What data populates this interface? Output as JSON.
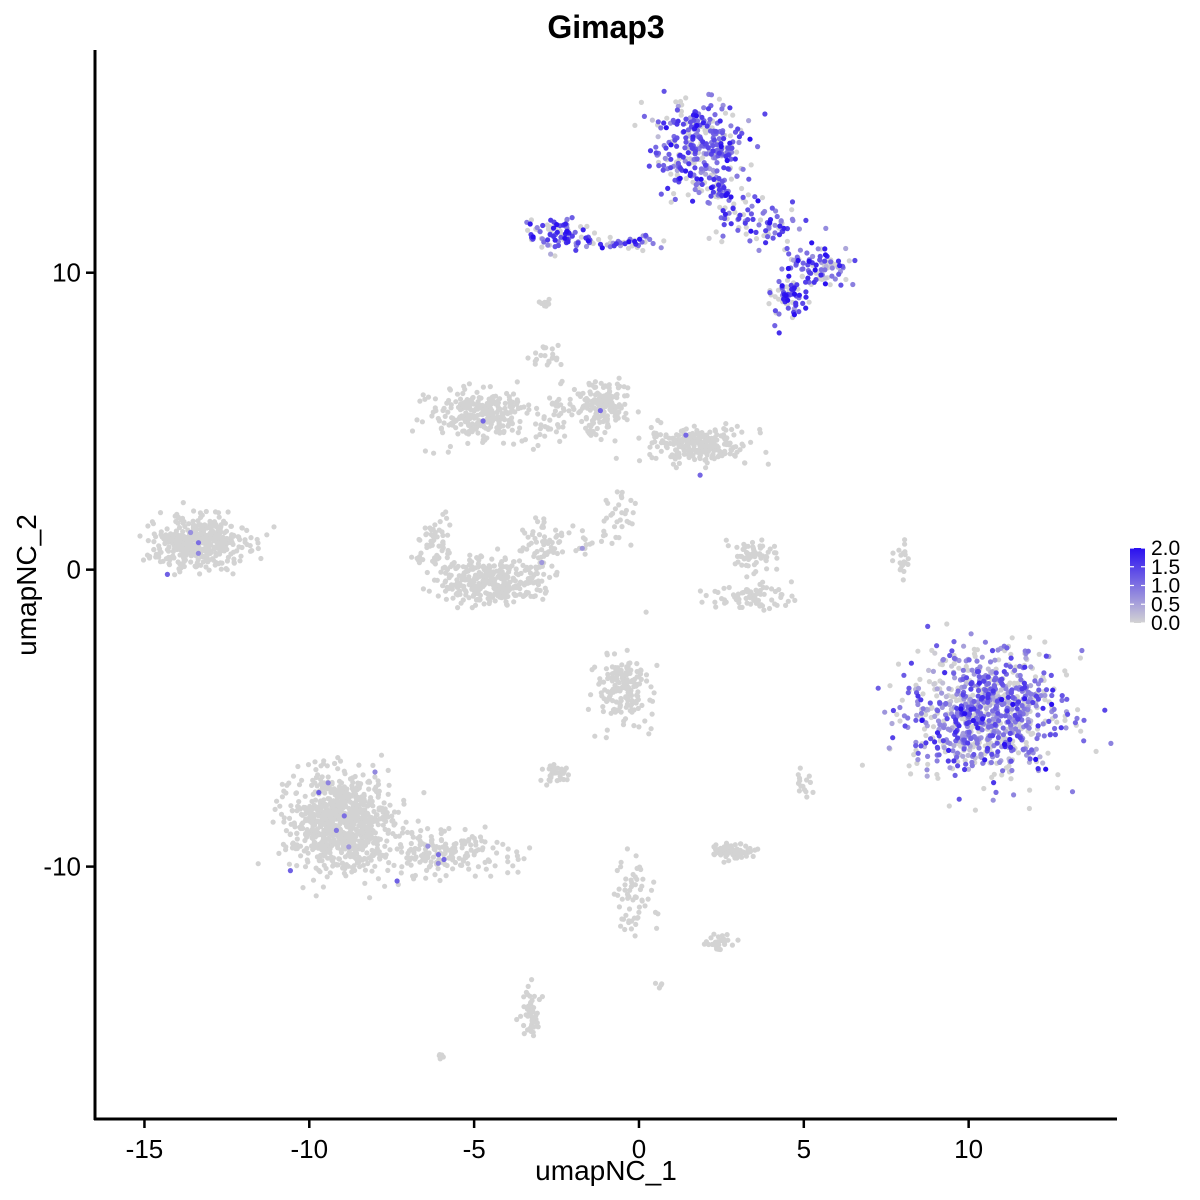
{
  "chart_data": {
    "type": "scatter",
    "title": "Gimap3",
    "xlabel": "umapNC_1",
    "ylabel": "umapNC_2",
    "xlim": [
      -16.5,
      14.5
    ],
    "ylim": [
      -18.5,
      17.5
    ],
    "x_ticks": [
      -15,
      -10,
      -5,
      0,
      5,
      10
    ],
    "x_tick_labels": [
      "-15",
      "-10",
      "-5",
      "0",
      "5",
      "10"
    ],
    "y_ticks": [
      10,
      0,
      -10
    ],
    "y_tick_labels": [
      "10",
      "0",
      "-10"
    ],
    "grid": false,
    "color_scale": {
      "low_color": "#d3d3d3",
      "high_color": "#2a10f0",
      "range": [
        0.0,
        2.0
      ],
      "ticks": [
        "2.0",
        "1.5",
        "1.0",
        "0.5",
        "0.0"
      ],
      "legend_position": "right"
    },
    "clusters": [
      {
        "center": [
          1.8,
          14.2
        ],
        "spread": [
          0.9,
          1.0
        ],
        "n": 320,
        "expr": 1.2
      },
      {
        "center": [
          2.6,
          12.6
        ],
        "spread": [
          0.6,
          0.5
        ],
        "n": 60,
        "expr": 1.2
      },
      {
        "center": [
          3.8,
          11.6
        ],
        "spread": [
          0.9,
          0.5
        ],
        "n": 70,
        "expr": 1.3
      },
      {
        "center": [
          -2.4,
          11.3
        ],
        "spread": [
          0.6,
          0.4
        ],
        "n": 80,
        "expr": 1.3
      },
      {
        "center": [
          -0.6,
          11.0
        ],
        "spread": [
          1.3,
          0.15
        ],
        "n": 50,
        "expr": 1.2
      },
      {
        "center": [
          5.4,
          10.2
        ],
        "spread": [
          0.7,
          0.5
        ],
        "n": 90,
        "expr": 1.1
      },
      {
        "center": [
          4.5,
          9.1
        ],
        "spread": [
          0.4,
          0.4
        ],
        "n": 60,
        "expr": 1.5
      },
      {
        "center": [
          10.6,
          -4.8
        ],
        "spread": [
          1.5,
          1.4
        ],
        "n": 900,
        "expr": 0.9
      },
      {
        "center": [
          -13.3,
          0.9
        ],
        "spread": [
          0.9,
          0.6
        ],
        "n": 420,
        "expr": 0.0
      },
      {
        "center": [
          -4.8,
          5.2
        ],
        "spread": [
          1.0,
          0.6
        ],
        "n": 280,
        "expr": 0.0
      },
      {
        "center": [
          -4.5,
          -0.4
        ],
        "spread": [
          1.0,
          0.5
        ],
        "n": 330,
        "expr": 0.0
      },
      {
        "center": [
          -6.2,
          0.8
        ],
        "spread": [
          0.4,
          0.6
        ],
        "n": 60,
        "expr": 0.0
      },
      {
        "center": [
          -3.0,
          0.8
        ],
        "spread": [
          0.4,
          0.6
        ],
        "n": 60,
        "expr": 0.0
      },
      {
        "center": [
          -1.2,
          5.5
        ],
        "spread": [
          0.6,
          0.6
        ],
        "n": 160,
        "expr": 0.0
      },
      {
        "center": [
          1.8,
          4.2
        ],
        "spread": [
          1.0,
          0.4
        ],
        "n": 260,
        "expr": 0.0
      },
      {
        "center": [
          -9.0,
          -8.5
        ],
        "spread": [
          1.0,
          1.1
        ],
        "n": 850,
        "expr": 0.0
      },
      {
        "center": [
          -6.0,
          -9.6
        ],
        "spread": [
          1.2,
          0.5
        ],
        "n": 180,
        "expr": 0.0
      },
      {
        "center": [
          -0.5,
          -4.0
        ],
        "spread": [
          0.5,
          0.8
        ],
        "n": 170,
        "expr": 0.0
      },
      {
        "center": [
          3.5,
          0.4
        ],
        "spread": [
          0.5,
          0.4
        ],
        "n": 60,
        "expr": 0.0
      },
      {
        "center": [
          3.4,
          -0.9
        ],
        "spread": [
          0.8,
          0.3
        ],
        "n": 70,
        "expr": 0.0
      },
      {
        "center": [
          2.8,
          -9.5
        ],
        "spread": [
          0.4,
          0.2
        ],
        "n": 70,
        "expr": 0.0
      },
      {
        "center": [
          -2.5,
          -6.9
        ],
        "spread": [
          0.3,
          0.2
        ],
        "n": 30,
        "expr": 0.0
      },
      {
        "center": [
          -3.3,
          -14.9
        ],
        "spread": [
          0.2,
          0.5
        ],
        "n": 50,
        "expr": 0.0
      },
      {
        "center": [
          -0.1,
          -11.0
        ],
        "spread": [
          0.4,
          0.9
        ],
        "n": 60,
        "expr": 0.0
      },
      {
        "center": [
          2.4,
          -12.6
        ],
        "spread": [
          0.3,
          0.2
        ],
        "n": 25,
        "expr": 0.0
      },
      {
        "center": [
          -2.8,
          7.2
        ],
        "spread": [
          0.3,
          0.3
        ],
        "n": 20,
        "expr": 0.0
      },
      {
        "center": [
          -2.5,
          5.2
        ],
        "spread": [
          0.2,
          0.6
        ],
        "n": 25,
        "expr": 0.0
      },
      {
        "center": [
          -0.6,
          1.8
        ],
        "spread": [
          0.3,
          0.6
        ],
        "n": 30,
        "expr": 0.0
      },
      {
        "center": [
          -1.8,
          1.0
        ],
        "spread": [
          0.6,
          0.3
        ],
        "n": 20,
        "expr": 0.0
      },
      {
        "center": [
          8.0,
          0.4
        ],
        "spread": [
          0.2,
          0.4
        ],
        "n": 20,
        "expr": 0.0
      },
      {
        "center": [
          5.0,
          -7.2
        ],
        "spread": [
          0.2,
          0.4
        ],
        "n": 15,
        "expr": 0.0
      },
      {
        "center": [
          -2.8,
          9.0
        ],
        "spread": [
          0.15,
          0.1
        ],
        "n": 8,
        "expr": 0.0
      },
      {
        "center": [
          -6.0,
          -16.4
        ],
        "spread": [
          0.1,
          0.1
        ],
        "n": 6,
        "expr": 0.0
      },
      {
        "center": [
          0.6,
          -14.0
        ],
        "spread": [
          0.1,
          0.1
        ],
        "n": 4,
        "expr": 0.0
      }
    ]
  }
}
